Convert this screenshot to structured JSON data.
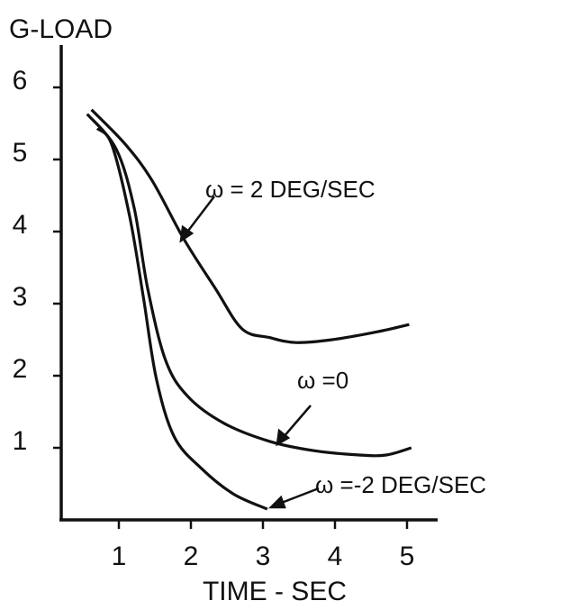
{
  "chart_data": {
    "type": "line",
    "ylabel": "G-LOAD",
    "xlabel": "TIME - SEC",
    "xlim": [
      0.2,
      5.4
    ],
    "ylim": [
      0,
      6.6
    ],
    "xticks": [
      1,
      2,
      3,
      4,
      5
    ],
    "yticks": [
      1,
      2,
      3,
      4,
      5,
      6
    ],
    "series": [
      {
        "name": "ω = 2 DEG/SEC",
        "color": "#111111",
        "x": [
          0.62,
          1.09,
          1.46,
          1.9,
          2.34,
          2.71,
          3.09,
          3.46,
          3.96,
          4.59,
          5.03
        ],
        "values": [
          5.69,
          5.21,
          4.71,
          3.9,
          3.21,
          2.65,
          2.53,
          2.46,
          2.5,
          2.61,
          2.71
        ]
      },
      {
        "name": "ω =0",
        "color": "#111111",
        "x": [
          0.56,
          0.96,
          1.21,
          1.4,
          1.65,
          1.96,
          2.46,
          3.09,
          3.71,
          4.34,
          4.71,
          5.06
        ],
        "values": [
          5.63,
          5.15,
          4.34,
          3.21,
          2.21,
          1.71,
          1.34,
          1.09,
          0.96,
          0.9,
          0.9,
          1.0
        ]
      },
      {
        "name": "ω =-2 DEG/SEC",
        "color": "#111111",
        "x": [
          0.7,
          0.9,
          1.15,
          1.34,
          1.52,
          1.77,
          2.15,
          2.59,
          3.06
        ],
        "values": [
          5.43,
          5.21,
          4.21,
          3.09,
          1.96,
          1.15,
          0.71,
          0.36,
          0.15
        ]
      }
    ]
  }
}
